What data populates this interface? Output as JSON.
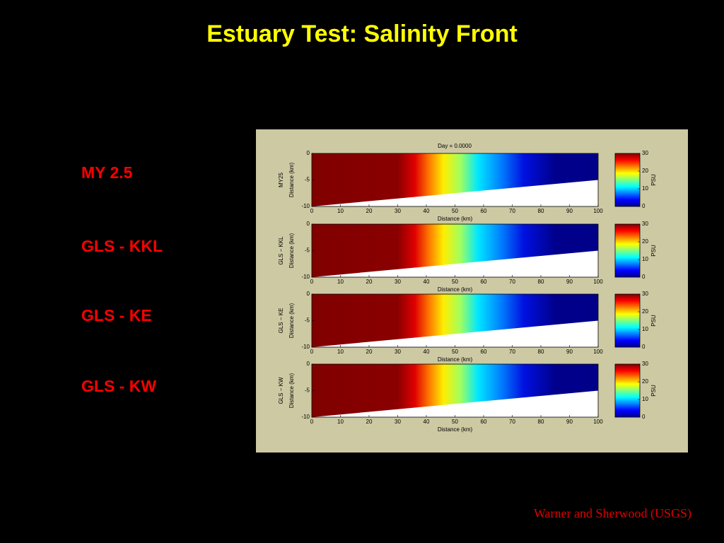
{
  "title": "Estuary Test: Salinity Front",
  "models": [
    "MY 2.5",
    "GLS - KKL",
    "GLS - KE",
    "GLS - KW"
  ],
  "credit": "Warner and Sherwood (USGS)",
  "figure": {
    "title": "Day = 0.0000",
    "xlabel": "Distance (km)",
    "ylabel": "Distance (km)",
    "colorbar_label": "PSU",
    "panels": [
      "MY25",
      "GLS − KKL",
      "GLS − KE",
      "GLS − KW"
    ],
    "xlim": [
      0,
      100
    ],
    "xticks": [
      0,
      10,
      20,
      30,
      40,
      50,
      60,
      70,
      80,
      90,
      100
    ],
    "ylim": [
      -10,
      0
    ],
    "yticks": [
      0,
      -5,
      -10
    ],
    "clim": [
      0,
      30
    ],
    "cticks": [
      0,
      10,
      20,
      30
    ],
    "bottom": {
      "x": [
        0,
        100
      ],
      "depth": [
        -10,
        -5
      ]
    }
  }
}
